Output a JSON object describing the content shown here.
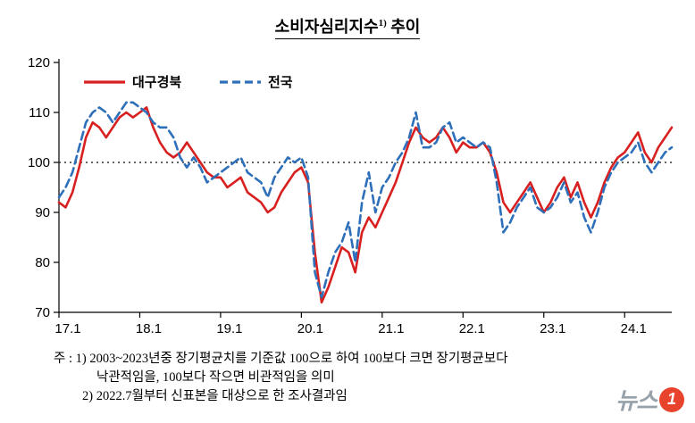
{
  "title": {
    "main": "소비자심리지수",
    "sup": "1)",
    "tail": " 추이"
  },
  "notes": {
    "line1": "주 : 1) 2003~2023년중 장기평균치를 기준값 100으로 하여 100보다 크면 장기평균보다",
    "line2": "낙관적임을, 100보다 작으면 비관적임을 의미",
    "line3": "2) 2022.7월부터 신표본을 대상으로 한 조사결과임"
  },
  "watermark": {
    "text": "뉴스",
    "badge": "1",
    "text_color": "#97a1aa",
    "badge_color": "#e8432d"
  },
  "chart_data": {
    "type": "line",
    "title": "소비자심리지수1) 추이",
    "x_unit": "month",
    "x_range": [
      "17.1",
      "24.8"
    ],
    "x_tick_labels": [
      "17.1",
      "18.1",
      "19.1",
      "20.1",
      "21.1",
      "22.1",
      "23.1",
      "24.1"
    ],
    "x_tick_indices": [
      0,
      12,
      24,
      36,
      48,
      60,
      72,
      84
    ],
    "ylim": [
      70,
      120
    ],
    "yticks": [
      70,
      80,
      90,
      100,
      110,
      120
    ],
    "reference_line": 100,
    "grid": "off",
    "legend_position": "top-left-inside",
    "series": [
      {
        "name": "대구경북",
        "color": "#d7201f",
        "style": "solid",
        "values": [
          92,
          91,
          94,
          99,
          105,
          108,
          107,
          105,
          107,
          109,
          110,
          109,
          110,
          111,
          107,
          104,
          102,
          101,
          102,
          104,
          102,
          100,
          98,
          97,
          97,
          95,
          96,
          97,
          94,
          93,
          92,
          90,
          91,
          94,
          96,
          98,
          99,
          96,
          82,
          72,
          75,
          79,
          83,
          82,
          78,
          86,
          89,
          87,
          90,
          93,
          96,
          100,
          104,
          107,
          105,
          104,
          105,
          107,
          105,
          102,
          104,
          103,
          103,
          104,
          102,
          98,
          92,
          90,
          92,
          94,
          96,
          93,
          90,
          92,
          95,
          97,
          93,
          96,
          92,
          89,
          92,
          96,
          99,
          101,
          102,
          104,
          106,
          102,
          100,
          103,
          105,
          107
        ]
      },
      {
        "name": "전국",
        "color": "#2e6fba",
        "style": "dashed",
        "values": [
          93,
          95,
          98,
          103,
          108,
          110,
          111,
          110,
          108,
          110,
          112,
          112,
          111,
          110,
          108,
          107,
          107,
          105,
          101,
          99,
          101,
          99,
          96,
          97,
          98,
          99,
          100,
          101,
          98,
          97,
          96,
          93,
          97,
          99,
          101,
          100,
          101,
          97,
          78,
          73,
          78,
          82,
          84,
          88,
          80,
          92,
          98,
          90,
          95,
          97,
          100,
          102,
          105,
          110,
          103,
          103,
          104,
          107,
          108,
          104,
          105,
          104,
          103,
          104,
          103,
          96,
          86,
          88,
          91,
          93,
          95,
          91,
          90,
          91,
          93,
          96,
          92,
          94,
          89,
          86,
          90,
          95,
          98,
          100,
          101,
          102,
          104,
          100,
          98,
          100,
          102,
          103
        ]
      }
    ]
  }
}
